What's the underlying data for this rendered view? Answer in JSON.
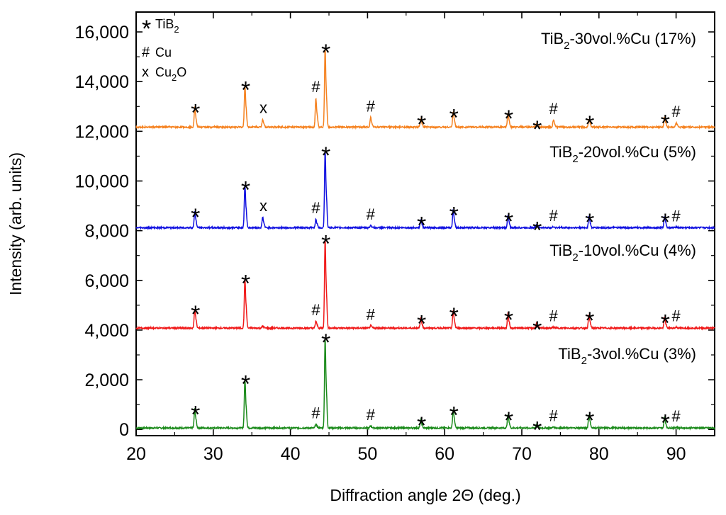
{
  "chart_data": {
    "type": "line",
    "xlabel": "Diffraction angle 2Θ (deg.)",
    "ylabel": "Intensity (arb. units)",
    "xlim": [
      20,
      95
    ],
    "ylim": [
      -250,
      16800
    ],
    "xticks": [
      20,
      30,
      40,
      50,
      60,
      70,
      80,
      90
    ],
    "xtick_labels": [
      "20",
      "30",
      "40",
      "50",
      "60",
      "70",
      "80",
      "90"
    ],
    "yticks": [
      0,
      2000,
      4000,
      6000,
      8000,
      10000,
      12000,
      14000,
      16000
    ],
    "ytick_labels": [
      "0",
      "2,000",
      "4,000",
      "6,000",
      "8,000",
      "10,000",
      "12,000",
      "14,000",
      "16,000"
    ],
    "legend": {
      "placement": "top-left",
      "entries": [
        {
          "symbol": "*",
          "text": "TiB",
          "sub": "2",
          "suffix": ""
        },
        {
          "symbol": "#",
          "text": "Cu",
          "sub": "",
          "suffix": ""
        },
        {
          "symbol": "x",
          "text": "Cu",
          "sub": "2",
          "suffix": "O"
        }
      ]
    },
    "series": [
      {
        "name": "TiB2-3vol.%Cu (3%)",
        "label_parts": [
          "TiB",
          "2",
          "-3vol.%Cu (3%)"
        ],
        "color": "#1a8a1a",
        "baseline": 60,
        "peaks": [
          {
            "x": 27.6,
            "h": 750,
            "marker": "*"
          },
          {
            "x": 34.1,
            "h": 1920,
            "marker": "*"
          },
          {
            "x": 43.3,
            "h": 150,
            "marker": "#"
          },
          {
            "x": 44.5,
            "h": 3500,
            "marker": "*"
          },
          {
            "x": 50.4,
            "h": 80,
            "marker": "#"
          },
          {
            "x": 56.9,
            "h": 330,
            "marker": "*"
          },
          {
            "x": 61.1,
            "h": 720,
            "marker": "*"
          },
          {
            "x": 68.2,
            "h": 520,
            "marker": "*"
          },
          {
            "x": 71.9,
            "h": 150,
            "marker": "*"
          },
          {
            "x": 74.1,
            "h": 40,
            "marker": "#"
          },
          {
            "x": 78.7,
            "h": 520,
            "marker": "*"
          },
          {
            "x": 88.5,
            "h": 420,
            "marker": "*"
          },
          {
            "x": 90.0,
            "h": 30,
            "marker": "#"
          }
        ]
      },
      {
        "name": "TiB2-10vol.%Cu (4%)",
        "label_parts": [
          "TiB",
          "2",
          "-10vol.%Cu (4%)"
        ],
        "color": "#f01818",
        "baseline": 4080,
        "peaks": [
          {
            "x": 27.6,
            "h": 760,
            "marker": "*"
          },
          {
            "x": 34.1,
            "h": 1940,
            "marker": "*"
          },
          {
            "x": 36.4,
            "h": 80,
            "marker": ""
          },
          {
            "x": 43.3,
            "h": 280,
            "marker": "#"
          },
          {
            "x": 44.5,
            "h": 3470,
            "marker": "*"
          },
          {
            "x": 50.4,
            "h": 100,
            "marker": "#"
          },
          {
            "x": 56.9,
            "h": 400,
            "marker": "*"
          },
          {
            "x": 61.1,
            "h": 680,
            "marker": "*"
          },
          {
            "x": 68.2,
            "h": 550,
            "marker": "*"
          },
          {
            "x": 71.9,
            "h": 170,
            "marker": "*"
          },
          {
            "x": 74.1,
            "h": 50,
            "marker": "#"
          },
          {
            "x": 78.7,
            "h": 520,
            "marker": "*"
          },
          {
            "x": 88.5,
            "h": 420,
            "marker": "*"
          },
          {
            "x": 90.0,
            "h": 40,
            "marker": "#"
          }
        ]
      },
      {
        "name": "TiB2-20vol.%Cu (5%)",
        "label_parts": [
          "TiB",
          "2",
          "-20vol.%Cu (5%)"
        ],
        "color": "#1010e0",
        "baseline": 8120,
        "peaks": [
          {
            "x": 27.6,
            "h": 640,
            "marker": "*"
          },
          {
            "x": 34.1,
            "h": 1680,
            "marker": "*"
          },
          {
            "x": 36.4,
            "h": 420,
            "marker": "x"
          },
          {
            "x": 43.3,
            "h": 340,
            "marker": "#"
          },
          {
            "x": 44.5,
            "h": 3000,
            "marker": "*"
          },
          {
            "x": 50.4,
            "h": 100,
            "marker": "#"
          },
          {
            "x": 56.9,
            "h": 320,
            "marker": "*"
          },
          {
            "x": 61.1,
            "h": 700,
            "marker": "*"
          },
          {
            "x": 68.2,
            "h": 480,
            "marker": "*"
          },
          {
            "x": 71.9,
            "h": 130,
            "marker": "*"
          },
          {
            "x": 74.1,
            "h": 40,
            "marker": "#"
          },
          {
            "x": 78.7,
            "h": 440,
            "marker": "*"
          },
          {
            "x": 88.5,
            "h": 450,
            "marker": "*"
          },
          {
            "x": 90.0,
            "h": 30,
            "marker": "#"
          }
        ]
      },
      {
        "name": "TiB2-30vol.%Cu (17%)",
        "label_parts": [
          "TiB",
          "2",
          "-30vol.%Cu (17%)"
        ],
        "color": "#f58220",
        "baseline": 12170,
        "peaks": [
          {
            "x": 27.6,
            "h": 780,
            "marker": "*"
          },
          {
            "x": 34.1,
            "h": 1650,
            "marker": "*"
          },
          {
            "x": 36.4,
            "h": 320,
            "marker": "x"
          },
          {
            "x": 43.3,
            "h": 1130,
            "marker": "#"
          },
          {
            "x": 44.5,
            "h": 3080,
            "marker": "*"
          },
          {
            "x": 50.4,
            "h": 380,
            "marker": "#"
          },
          {
            "x": 56.9,
            "h": 330,
            "marker": "*"
          },
          {
            "x": 61.1,
            "h": 600,
            "marker": "*"
          },
          {
            "x": 68.2,
            "h": 560,
            "marker": "*"
          },
          {
            "x": 71.9,
            "h": 140,
            "marker": "*"
          },
          {
            "x": 74.1,
            "h": 280,
            "marker": "#"
          },
          {
            "x": 78.7,
            "h": 330,
            "marker": "*"
          },
          {
            "x": 88.5,
            "h": 380,
            "marker": "*"
          },
          {
            "x": 90.0,
            "h": 180,
            "marker": "#"
          }
        ]
      }
    ]
  }
}
